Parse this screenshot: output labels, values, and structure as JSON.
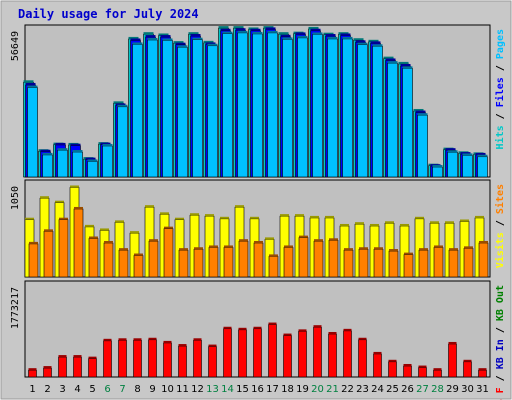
{
  "title": "Daily usage for July 2024",
  "colors": {
    "background": "#c0c0c0",
    "title": "#0000cc",
    "hits": "#00c8c8",
    "files": "#0000ff",
    "pages": "#00c0ff",
    "visits": "#ffff00",
    "sites": "#ff8000",
    "kbin": "#008000",
    "kbout": "#0000c0",
    "kbf": "#ff0000",
    "weekend": "#008040",
    "weekday": "#000000"
  },
  "chart_data": {
    "type": "bar",
    "categories": [
      "1",
      "2",
      "3",
      "4",
      "5",
      "6",
      "7",
      "8",
      "9",
      "10",
      "11",
      "12",
      "13",
      "14",
      "15",
      "16",
      "17",
      "18",
      "19",
      "20",
      "21",
      "22",
      "23",
      "24",
      "25",
      "26",
      "27",
      "28",
      "29",
      "30",
      "31"
    ],
    "weekend_days": [
      6,
      7,
      13,
      14,
      20,
      21,
      27,
      28
    ],
    "panels": [
      {
        "max_label": "56649",
        "ylim": [
          0,
          56649
        ],
        "legend": [
          {
            "text": "Hits",
            "color_key": "hits"
          },
          {
            "text": "Files",
            "color_key": "files"
          },
          {
            "text": "Pages",
            "color_key": "pages"
          }
        ],
        "series": [
          {
            "name": "Hits",
            "color_key": "hits",
            "values": [
              36000,
              9800,
              12300,
              12200,
              6800,
              12500,
              28000,
              52500,
              54300,
              53800,
              50900,
              54300,
              51000,
              56600,
              56600,
              56100,
              56600,
              54300,
              54500,
              56300,
              54100,
              54300,
              52000,
              51400,
              45000,
              43000,
              25100,
              4300,
              10400,
              9000,
              8600
            ]
          },
          {
            "name": "Files",
            "color_key": "files",
            "values": [
              35000,
              9600,
              12200,
              11900,
              6600,
              12300,
              27200,
              51900,
              53200,
              53200,
              50300,
              53600,
              50400,
              55600,
              55800,
              55600,
              56100,
              53300,
              54200,
              55600,
              53600,
              53800,
              51200,
              50800,
              44300,
              42200,
              24500,
              4100,
              10200,
              8700,
              8400
            ]
          },
          {
            "name": "Pages",
            "color_key": "pages",
            "values": [
              34000,
              8400,
              10200,
              9500,
              5900,
              11800,
              26700,
              50400,
              52100,
              51900,
              49300,
              52200,
              49900,
              54500,
              54800,
              54400,
              54800,
              52300,
              52900,
              54200,
              52500,
              52500,
              50300,
              49700,
              43300,
              41300,
              23500,
              3800,
              9400,
              8200,
              7700
            ]
          }
        ]
      },
      {
        "max_label": "1050",
        "ylim": [
          0,
          1050
        ],
        "legend": [
          {
            "text": "Visits",
            "color_key": "visits"
          },
          {
            "text": "Sites",
            "color_key": "sites"
          }
        ],
        "series": [
          {
            "name": "Visits",
            "color_key": "visits",
            "values": [
              640,
              880,
              830,
              1000,
              560,
              520,
              610,
              490,
              780,
              700,
              640,
              690,
              680,
              650,
              780,
              650,
              420,
              680,
              680,
              660,
              660,
              570,
              590,
              570,
              600,
              570,
              650,
              600,
              600,
              620,
              660
            ]
          },
          {
            "name": "Sites",
            "color_key": "sites",
            "values": [
              370,
              510,
              640,
              760,
              430,
              380,
              300,
              240,
              400,
              540,
              300,
              310,
              330,
              330,
              400,
              380,
              230,
              330,
              440,
              400,
              410,
              300,
              310,
              310,
              290,
              250,
              300,
              330,
              300,
              320,
              380
            ]
          }
        ]
      },
      {
        "max_label": "1773217",
        "ylim": [
          0,
          1773217
        ],
        "legend": [
          {
            "text": "KB F",
            "color_key": "kbf"
          },
          {
            "text": "KB In",
            "color_key": "kbout"
          },
          {
            "text": "KB Out",
            "color_key": "kbin"
          }
        ],
        "series": [
          {
            "name": "KB F",
            "color_key": "kbf",
            "values": [
              130000,
              170000,
              380000,
              380000,
              350000,
              690000,
              700000,
              700000,
              710000,
              650000,
              590000,
              700000,
              580000,
              920000,
              900000,
              920000,
              1000000,
              790000,
              870000,
              950000,
              820000,
              880000,
              710000,
              440000,
              290000,
              210000,
              180000,
              130000,
              630000,
              290000,
              130000
            ]
          }
        ]
      }
    ]
  }
}
